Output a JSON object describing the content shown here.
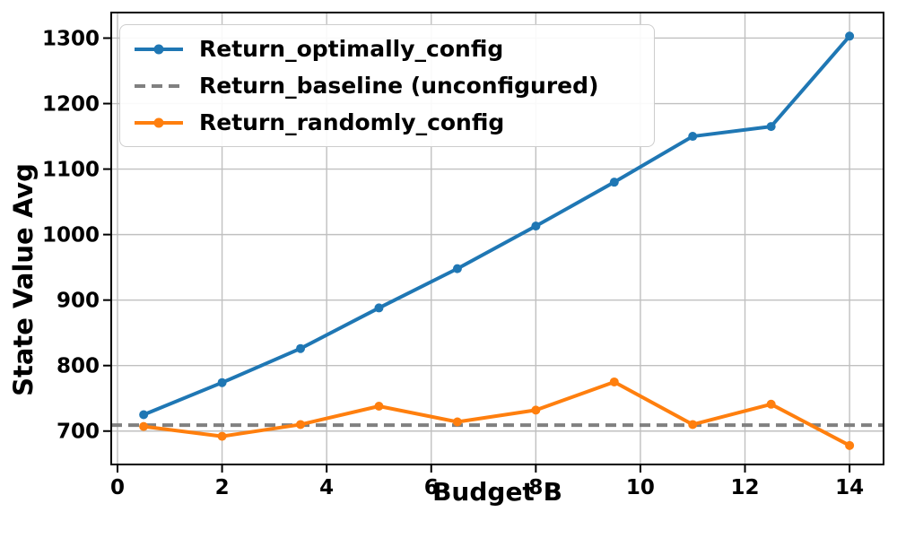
{
  "chart_data": {
    "type": "line",
    "title": "",
    "xlabel": "Budget B",
    "ylabel": "State Value Avg",
    "x": [
      0.5,
      2,
      3.5,
      5,
      6.5,
      8,
      9.5,
      11,
      12.5,
      14
    ],
    "series": [
      {
        "name": "Return_optimally_config",
        "color": "#1f77b4",
        "line_style": "solid",
        "marker": "circle",
        "values": [
          725,
          774,
          826,
          888,
          948,
          1013,
          1080,
          1150,
          1165,
          1303
        ]
      },
      {
        "name": "Return_baseline (unconfigured)",
        "color": "#808080",
        "line_style": "dashed",
        "marker": "none",
        "hline": 709
      },
      {
        "name": "Return_randomly_config",
        "color": "#ff7f0e",
        "line_style": "solid",
        "marker": "circle",
        "values": [
          707,
          692,
          710,
          738,
          714,
          732,
          775,
          710,
          741,
          678
        ]
      }
    ],
    "xticks": [
      0,
      2,
      4,
      6,
      8,
      10,
      12,
      14
    ],
    "yticks": [
      700,
      800,
      900,
      1000,
      1100,
      1200,
      1300
    ],
    "xlim": [
      -0.12,
      14.65
    ],
    "ylim": [
      649,
      1339
    ],
    "grid": true,
    "grid_color": "#c0c0c0",
    "axis_color": "#000000",
    "background_color": "#ffffff",
    "legend_position": "upper left"
  }
}
